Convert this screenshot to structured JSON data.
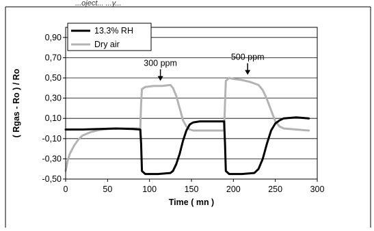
{
  "page": {
    "top_text": "...oject... ...y..."
  },
  "chart_data": {
    "type": "line",
    "title": "",
    "xlabel": "Time ( mn )",
    "ylabel": "( Rgas - Ro ) / Ro",
    "xlim": [
      0,
      300
    ],
    "ylim": [
      -0.5,
      1.0
    ],
    "x_ticks": [
      "0",
      "50",
      "100",
      "150",
      "200",
      "250",
      "300"
    ],
    "y_ticks": [
      "-0,50",
      "-0,30",
      "-0,10",
      "0,10",
      "0,30",
      "0,50",
      "0,70",
      "0,90"
    ],
    "y_tick_values": [
      -0.5,
      -0.3,
      -0.1,
      0.1,
      0.3,
      0.5,
      0.7,
      0.9
    ],
    "grid": "horizontal",
    "legend_position": "top-left",
    "series": [
      {
        "name": "13.3% RH",
        "color": "#000000",
        "x": [
          0,
          20,
          40,
          60,
          80,
          89,
          90,
          91,
          95,
          110,
          125,
          128,
          132,
          136,
          140,
          144,
          148,
          152,
          160,
          175,
          189,
          190,
          191,
          195,
          210,
          225,
          230,
          235,
          240,
          245,
          250,
          255,
          260,
          275,
          290
        ],
        "y": [
          -0.01,
          -0.01,
          -0.005,
          0.0,
          -0.005,
          -0.01,
          -0.15,
          -0.42,
          -0.45,
          -0.45,
          -0.44,
          -0.42,
          -0.35,
          -0.25,
          -0.12,
          -0.02,
          0.04,
          0.06,
          0.07,
          0.07,
          0.07,
          -0.15,
          -0.42,
          -0.45,
          -0.45,
          -0.44,
          -0.4,
          -0.3,
          -0.15,
          -0.02,
          0.05,
          0.08,
          0.1,
          0.11,
          0.1
        ]
      },
      {
        "name": "Dry air",
        "color": "#b3b3b3",
        "x": [
          0,
          2,
          5,
          10,
          15,
          20,
          30,
          40,
          50,
          60,
          70,
          80,
          89,
          90,
          91,
          95,
          105,
          115,
          125,
          128,
          132,
          136,
          140,
          144,
          148,
          152,
          160,
          175,
          189,
          190,
          191,
          195,
          200,
          210,
          220,
          230,
          235,
          240,
          245,
          250,
          255,
          260,
          275,
          290
        ],
        "y": [
          -0.42,
          -0.33,
          -0.25,
          -0.17,
          -0.11,
          -0.07,
          -0.035,
          -0.015,
          -0.005,
          -0.002,
          0.0,
          0.0,
          0.0,
          0.25,
          0.39,
          0.41,
          0.42,
          0.42,
          0.43,
          0.4,
          0.32,
          0.2,
          0.08,
          0.02,
          -0.01,
          -0.02,
          -0.02,
          -0.02,
          -0.02,
          0.25,
          0.47,
          0.5,
          0.49,
          0.48,
          0.46,
          0.43,
          0.38,
          0.29,
          0.18,
          0.07,
          0.02,
          0.0,
          -0.01,
          -0.02
        ]
      }
    ],
    "annotations": [
      {
        "text": "300 ppm",
        "arrow_x": 113,
        "arrow_y": 0.43
      },
      {
        "text": "500 ppm",
        "arrow_x": 217,
        "arrow_y": 0.49
      }
    ]
  }
}
